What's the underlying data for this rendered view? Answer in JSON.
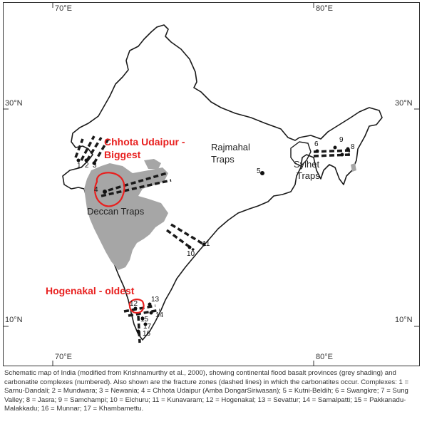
{
  "map": {
    "lon_labels": {
      "left_top": "70°E",
      "right_top": "80°E",
      "left_bottom": "70°E",
      "right_bottom": "80°E"
    },
    "lat_labels": {
      "n30_left": "30°N",
      "n30_right": "30°N",
      "n10_left": "10°N",
      "n10_right": "10°N"
    },
    "provinces": {
      "deccan": "Deccan Traps",
      "rajmahal_line1": "Rajmahal",
      "rajmahal_line2": "Traps",
      "sylhet_line1": "Sylhet",
      "sylhet_line2": "Traps"
    },
    "complex_numbers": [
      "1",
      "2",
      "3",
      "4",
      "5",
      "6",
      "7",
      "8",
      "9",
      "10",
      "11",
      "12",
      "13",
      "14",
      "15",
      "16",
      "17"
    ],
    "annotations": {
      "chhota_line1": "Chhota Udaipur -",
      "chhota_line2": "Biggest",
      "hogenakal": "Hogenakal - oldest",
      "annotation_color": "#e8201f"
    },
    "colors": {
      "basalt_fill": "#a6a6a6",
      "outline": "#1a1a1a",
      "highlight": "#e8201f"
    }
  },
  "caption": "Schematic map of India (modified from Krishnamurthy et al., 2000), showing continental flood basalt provinces (grey shading) and carbonatite complexes (numbered). Also shown are the fracture zones (dashed lines) in which the carbonatites occur. Complexes: 1 = Sarnu-Dandali; 2 = Mundwara; 3 = Newania; 4 = Chhota Udaipur (Amba DongarSiriwasan); 5 = Kutni-Beldih; 6 = Swangkre; 7 = Sung Valley; 8 = Jasra; 9 = Samchampi; 10 = Elchuru; 11 = Kunavaram; 12 = Hogenakal; 13 = Sevattur; 14 = Samalpatti; 15 = Pakkanadu-Malakkadu; 16 = Munnar; 17 = Khambamettu."
}
